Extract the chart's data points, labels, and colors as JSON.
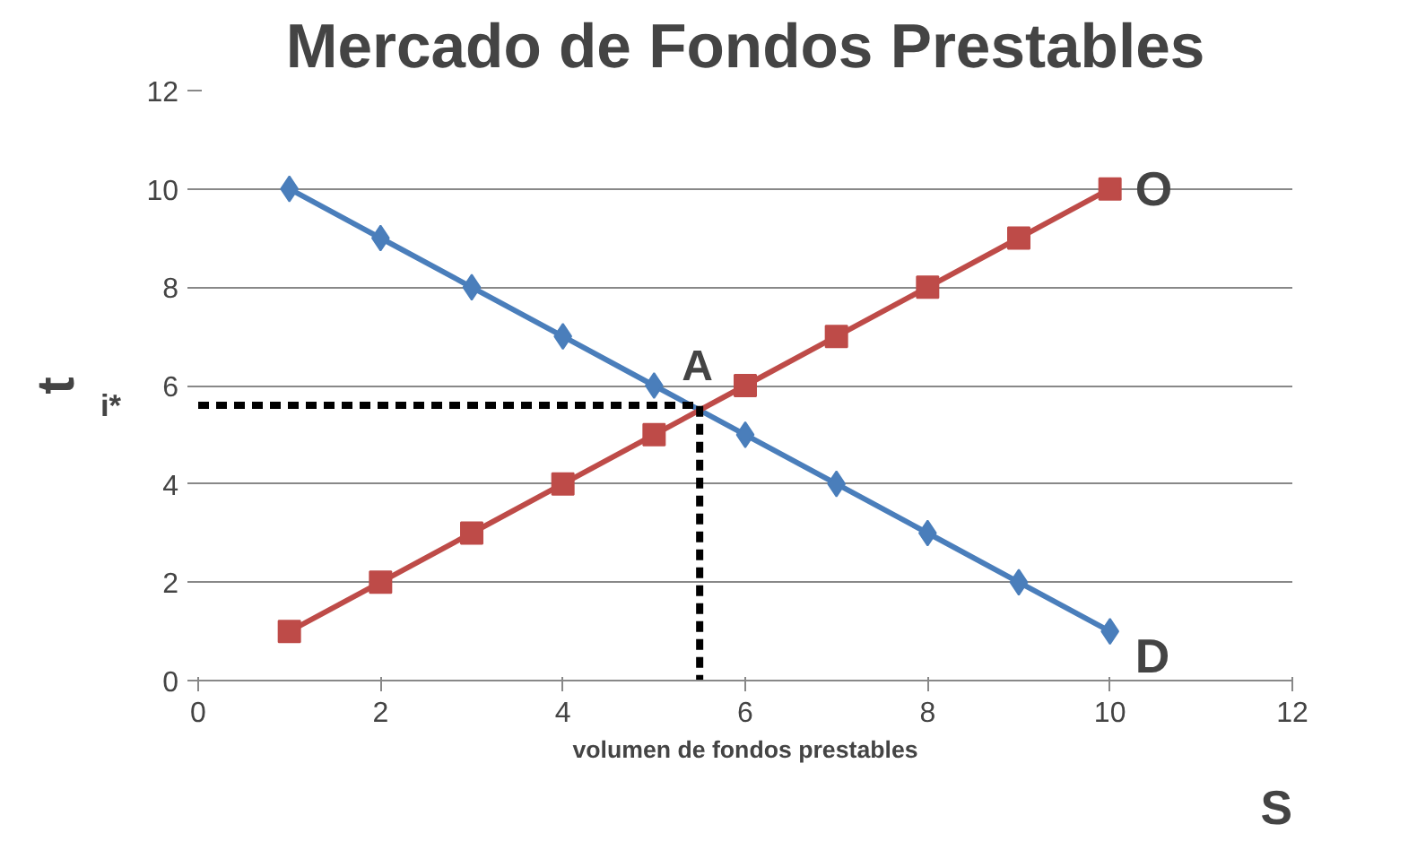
{
  "chart_data": {
    "type": "line",
    "title": "Mercado de Fondos Prestables",
    "xlabel": "volumen de fondos prestables",
    "ylabel": "t",
    "xlim": [
      0,
      12
    ],
    "ylim": [
      0,
      12
    ],
    "xticks": [
      0,
      2,
      4,
      6,
      8,
      10,
      12
    ],
    "yticks": [
      0,
      2,
      4,
      6,
      8,
      10,
      12
    ],
    "grid": "y",
    "legend": false,
    "series": [
      {
        "name": "D",
        "color": "#4a7ebb",
        "marker": "diamond",
        "x": [
          1,
          2,
          3,
          4,
          5,
          6,
          7,
          8,
          9,
          10
        ],
        "values": [
          10,
          9,
          8,
          7,
          6,
          5,
          4,
          3,
          2,
          1
        ]
      },
      {
        "name": "O",
        "color": "#be4b48",
        "marker": "square",
        "x": [
          1,
          2,
          3,
          4,
          5,
          6,
          7,
          8,
          9,
          10
        ],
        "values": [
          1,
          2,
          3,
          4,
          5,
          6,
          7,
          8,
          9,
          10
        ]
      },
      {
        "color": "#000000",
        "marker": "none",
        "line_style": "dashed",
        "x": [
          0,
          5.5,
          5.5
        ],
        "values": [
          5.6,
          5.6,
          0
        ]
      }
    ],
    "annotations": [
      {
        "text": "A",
        "x": 5.5,
        "y": 5.6
      },
      {
        "text": "i*",
        "x": 0,
        "y": 5.6
      },
      "S"
    ]
  }
}
